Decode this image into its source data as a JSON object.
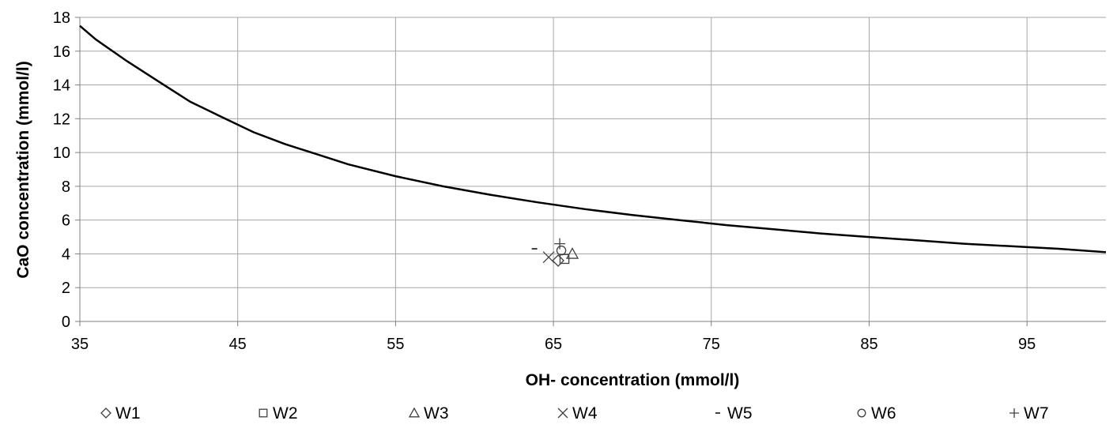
{
  "chart_data": {
    "type": "scatter",
    "xlabel": "OH- concentration (mmol/l)",
    "ylabel": "CaO concentration (mmol/l)",
    "xlim": [
      35,
      100
    ],
    "ylim": [
      0,
      18
    ],
    "x_ticks": [
      35,
      45,
      55,
      65,
      75,
      85,
      95
    ],
    "y_ticks": [
      0,
      2,
      4,
      6,
      8,
      10,
      12,
      14,
      16,
      18
    ],
    "grid": true,
    "legend_position": "bottom",
    "curve": {
      "x": [
        35,
        36,
        38,
        40,
        42,
        44,
        46,
        48,
        50,
        52,
        55,
        58,
        61,
        64,
        67,
        70,
        73,
        76,
        79,
        82,
        85,
        88,
        91,
        94,
        97,
        100
      ],
      "y": [
        17.5,
        16.7,
        15.4,
        14.2,
        13.0,
        12.1,
        11.2,
        10.5,
        9.9,
        9.3,
        8.6,
        8.0,
        7.5,
        7.05,
        6.65,
        6.3,
        6.0,
        5.7,
        5.45,
        5.2,
        5.0,
        4.8,
        4.6,
        4.45,
        4.3,
        4.1
      ]
    },
    "series": [
      {
        "name": "W1",
        "marker": "diamond",
        "symbol": "◇",
        "x": 65.3,
        "y": 3.6
      },
      {
        "name": "W2",
        "marker": "square",
        "symbol": "□",
        "x": 65.7,
        "y": 3.7
      },
      {
        "name": "W3",
        "marker": "triangle",
        "symbol": "△",
        "x": 66.2,
        "y": 4.0
      },
      {
        "name": "W4",
        "marker": "x",
        "symbol": "╳",
        "x": 64.7,
        "y": 3.8
      },
      {
        "name": "W5",
        "marker": "dash",
        "symbol": "-",
        "x": 63.8,
        "y": 4.3
      },
      {
        "name": "W6",
        "marker": "circle",
        "symbol": "○",
        "x": 65.5,
        "y": 4.2
      },
      {
        "name": "W7",
        "marker": "plus",
        "symbol": "+",
        "x": 65.4,
        "y": 4.6
      }
    ],
    "colors": {
      "marker": "#404040",
      "curve": "#000000",
      "grid": "#a6a6a6"
    }
  }
}
